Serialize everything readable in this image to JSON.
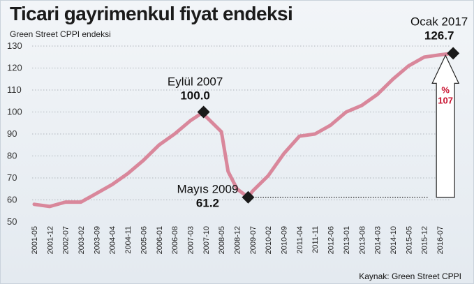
{
  "header": {
    "title": "Ticari gayrimenkul fiyat endeksi",
    "subtitle": "Green Street CPPI endeksi"
  },
  "footer": {
    "source": "Kaynak: Green Street CPPI"
  },
  "colors": {
    "line": "#d9879b",
    "marker": "#1a1a1a",
    "accent": "#c8102e"
  },
  "chart_data": {
    "type": "line",
    "title": "Ticari gayrimenkul fiyat endeksi",
    "subtitle": "Green Street CPPI endeksi",
    "xlabel": "",
    "ylabel": "",
    "ylim": [
      50,
      130
    ],
    "yticks": [
      50,
      60,
      70,
      80,
      90,
      100,
      110,
      120,
      130
    ],
    "xticks": [
      "2001-05",
      "2001-12",
      "2002-07",
      "2003-02",
      "2003-09",
      "2004-04",
      "2004-11",
      "2005-06",
      "2006-01",
      "2006-08",
      "2007-03",
      "2007-10",
      "2008-05",
      "2008-12",
      "2009-07",
      "2010-02",
      "2010-09",
      "2011-04",
      "2011-11",
      "2012-06",
      "2013-01",
      "2013-08",
      "2014-03",
      "2014-10",
      "2015-05",
      "2015-12",
      "2016-07"
    ],
    "grid": "horizontal-dotted",
    "series": [
      {
        "x": [
          "2001-05",
          "2001-12",
          "2002-07",
          "2003-02",
          "2003-09",
          "2004-04",
          "2004-11",
          "2005-06",
          "2006-01",
          "2006-08",
          "2007-03",
          "2007-09",
          "2007-10",
          "2008-05",
          "2008-08",
          "2008-12",
          "2009-05",
          "2009-07",
          "2010-02",
          "2010-09",
          "2011-04",
          "2011-11",
          "2012-06",
          "2013-01",
          "2013-08",
          "2014-03",
          "2014-10",
          "2015-05",
          "2015-12",
          "2016-07",
          "2017-01"
        ],
        "values": [
          58,
          57,
          59,
          59,
          63,
          67,
          72,
          78,
          85,
          90,
          96,
          100,
          98,
          91,
          73,
          65,
          61.2,
          64,
          71,
          81,
          89,
          90,
          94,
          100,
          103,
          108,
          115,
          121,
          125,
          126,
          126.7
        ]
      }
    ],
    "annotations": [
      {
        "date": "Eylül 2007",
        "value": "100.0",
        "x": "2007-09",
        "y": 100.0
      },
      {
        "date": "Mayıs 2009",
        "value": "61.2",
        "x": "2009-05",
        "y": 61.2
      },
      {
        "date": "Ocak 2017",
        "value": "126.7",
        "x": "2017-01",
        "y": 126.7
      }
    ],
    "change_label": {
      "symbol": "%",
      "value": "107"
    }
  }
}
